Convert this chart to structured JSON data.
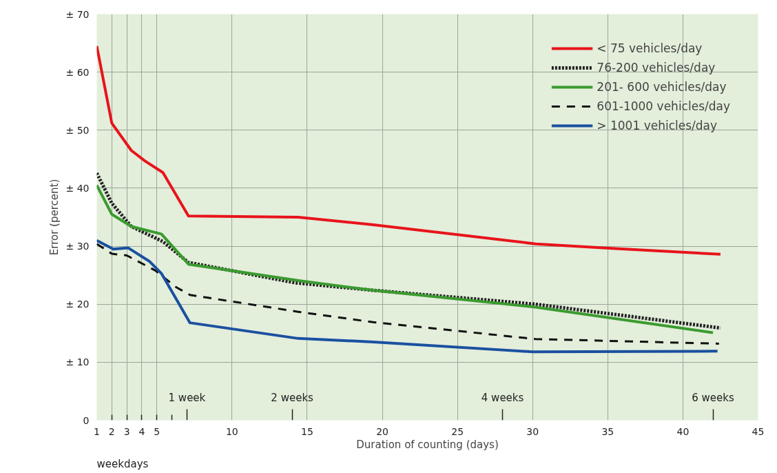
{
  "chart_data": {
    "type": "line",
    "xlabel": "Duration of counting (days)",
    "ylabel": "Error (percent)",
    "xlim": [
      1,
      45
    ],
    "ylim": [
      0,
      70
    ],
    "xticks": [
      1,
      2,
      3,
      4,
      5,
      10,
      15,
      20,
      25,
      30,
      35,
      40,
      45
    ],
    "yticks": [
      0,
      {
        "value": 10,
        "label": "± 10"
      },
      {
        "value": 20,
        "label": "± 20"
      },
      {
        "value": 30,
        "label": "± 30"
      },
      {
        "value": 40,
        "label": "± 40"
      },
      {
        "value": 50,
        "label": "± 50"
      },
      {
        "value": 60,
        "label": "± 60"
      },
      {
        "value": 70,
        "label": "± 70"
      }
    ],
    "grid": true,
    "legend": "top right",
    "series": [
      {
        "name": "< 75 vehicles/day",
        "color": "#e8141b",
        "line_style": "solid",
        "x": [
          1,
          2,
          3.3,
          4.2,
          5.4,
          7.1,
          14.4,
          19.4,
          30.2,
          35.5,
          42.5
        ],
        "values": [
          64.5,
          51.2,
          46.5,
          44.7,
          42.7,
          35.2,
          35.0,
          33.7,
          30.4,
          29.6,
          28.6
        ]
      },
      {
        "name": "76-200 vehicles/day",
        "color": "#222222",
        "line_style": "dotted",
        "x": [
          1,
          2,
          3.3,
          5.4,
          7.1,
          14.2,
          19.4,
          30.2,
          42.5
        ],
        "values": [
          42.6,
          37.4,
          33.4,
          30.8,
          27.2,
          23.7,
          22.4,
          20.0,
          15.9
        ]
      },
      {
        "name": "201- 600 vehicles/day",
        "color": "#3a9b2f",
        "line_style": "solid",
        "x": [
          1,
          2,
          3.3,
          5.3,
          7.1,
          14.6,
          19.4,
          30.2,
          42.0
        ],
        "values": [
          40.5,
          35.5,
          33.4,
          32.1,
          26.9,
          24.0,
          22.4,
          19.5,
          15.1
        ]
      },
      {
        "name": "601-1000 vehicles/day",
        "color": "#111111",
        "line_style": "dashed",
        "x": [
          1,
          2,
          3.0,
          4.9,
          6.3,
          7.2,
          14.4,
          19.4,
          30.2,
          42.4
        ],
        "values": [
          30.4,
          28.7,
          28.4,
          25.8,
          22.9,
          21.6,
          18.7,
          16.9,
          14.0,
          13.2
        ]
      },
      {
        "name": "> 1001 vehicles/day",
        "color": "#1a50a0",
        "line_style": "solid",
        "x": [
          1,
          2.1,
          3.1,
          4.5,
          5.3,
          7.2,
          14.4,
          19.4,
          30.0,
          42.3
        ],
        "values": [
          31.0,
          29.5,
          29.7,
          27.4,
          25.3,
          16.8,
          14.1,
          13.5,
          11.8,
          11.9
        ]
      }
    ],
    "x2lim": [
      0.142857,
      6.428571
    ],
    "x2ticks": [
      {
        "value": 0.285714,
        "label": null
      },
      {
        "value": 0.428571,
        "label": null
      },
      {
        "value": 0.571429,
        "label": null
      },
      {
        "value": 0.714286,
        "label": null
      },
      {
        "value": 0.857143,
        "label": null
      },
      {
        "value": 1,
        "label": "1 week"
      },
      {
        "value": 2,
        "label": "2 weeks"
      },
      {
        "value": 4,
        "label": "4 weeks"
      },
      {
        "value": 6,
        "label": "6 weeks"
      }
    ],
    "annotations": [
      "weekdays"
    ]
  }
}
